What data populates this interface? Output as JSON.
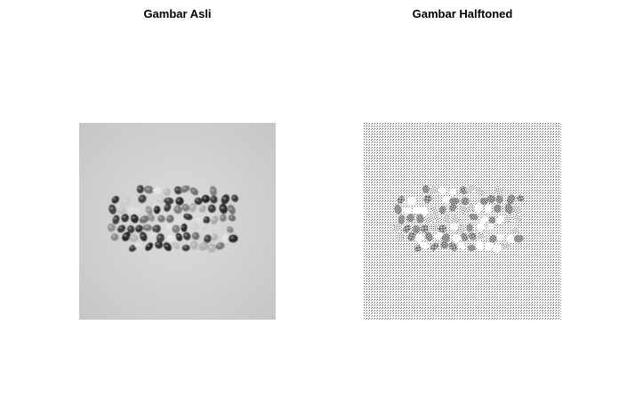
{
  "figure": {
    "panels": [
      {
        "title": "Gambar Asli",
        "image": "grayscale-jelly-beans-photo"
      },
      {
        "title": "Gambar Halftoned",
        "image": "halftoned-jelly-beans-dot-pattern"
      }
    ]
  }
}
